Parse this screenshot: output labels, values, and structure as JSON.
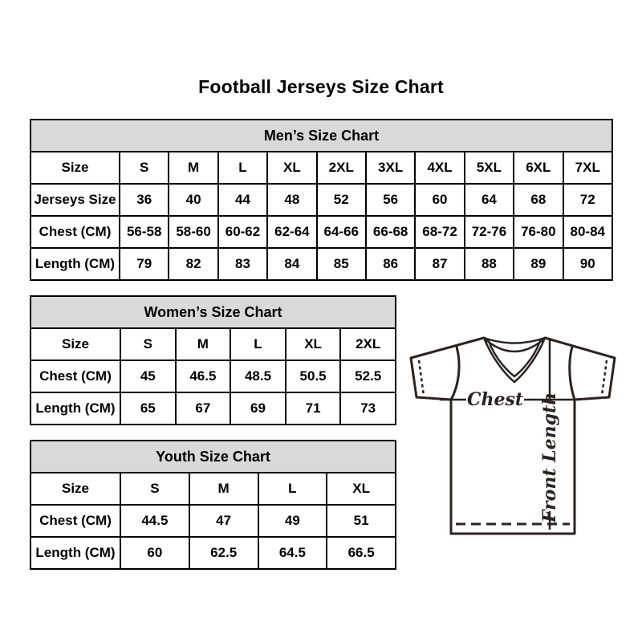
{
  "page": {
    "title": "Football Jerseys Size Chart",
    "background": "#ffffff"
  },
  "tables": [
    {
      "id": "mens",
      "title": "Men’s Size Chart",
      "rows": [
        [
          "Size",
          "S",
          "M",
          "L",
          "XL",
          "2XL",
          "3XL",
          "4XL",
          "5XL",
          "6XL",
          "7XL"
        ],
        [
          "Jerseys Size",
          "36",
          "40",
          "44",
          "48",
          "52",
          "56",
          "60",
          "64",
          "68",
          "72"
        ],
        [
          "Chest (CM)",
          "56-58",
          "58-60",
          "60-62",
          "62-64",
          "64-66",
          "66-68",
          "68-72",
          "72-76",
          "76-80",
          "80-84"
        ],
        [
          "Length (CM)",
          "79",
          "82",
          "83",
          "84",
          "85",
          "86",
          "87",
          "88",
          "89",
          "90"
        ]
      ]
    },
    {
      "id": "womens",
      "title": "Women’s Size Chart",
      "rows": [
        [
          "Size",
          "S",
          "M",
          "L",
          "XL",
          "2XL"
        ],
        [
          "Chest (CM)",
          "45",
          "46.5",
          "48.5",
          "50.5",
          "52.5"
        ],
        [
          "Length (CM)",
          "65",
          "67",
          "69",
          "71",
          "73"
        ]
      ]
    },
    {
      "id": "youth",
      "title": "Youth Size Chart",
      "rows": [
        [
          "Size",
          "S",
          "M",
          "L",
          "XL"
        ],
        [
          "Chest (CM)",
          "44.5",
          "47",
          "49",
          "51"
        ],
        [
          "Length (CM)",
          "60",
          "62.5",
          "64.5",
          "66.5"
        ]
      ]
    }
  ],
  "diagram": {
    "chest_label": "Chest",
    "front_length_label": "Front Length"
  },
  "colors": {
    "table_header_bg": "#d9d9d9",
    "table_border": "#000000",
    "text": "#000000",
    "jersey_line": "#2b2320"
  }
}
